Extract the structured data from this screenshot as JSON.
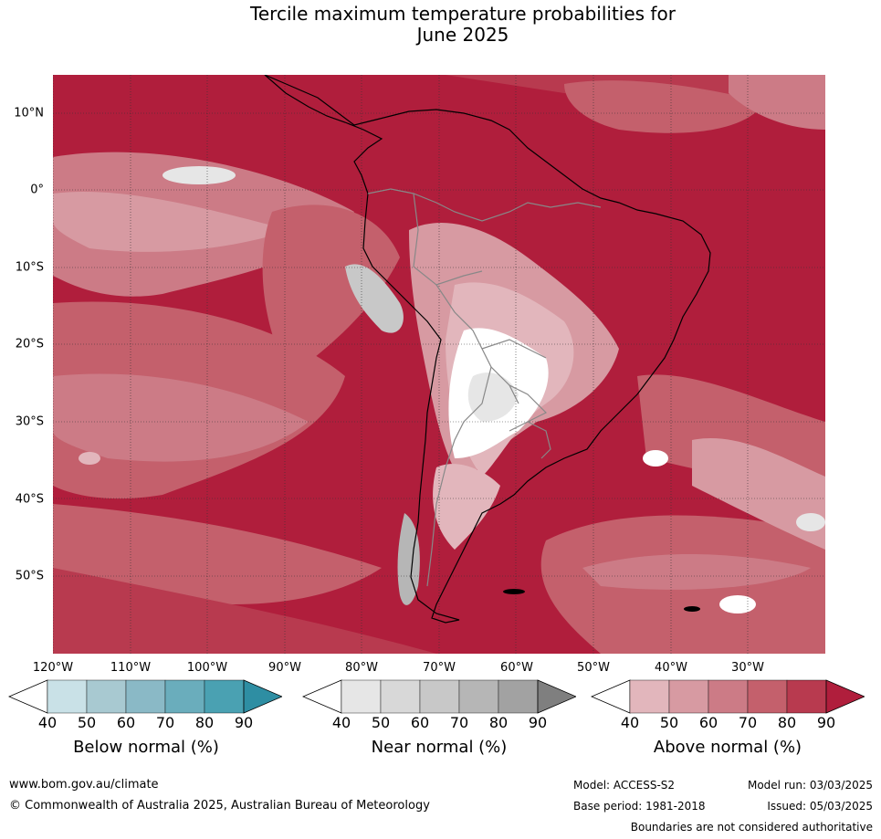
{
  "title_line1": "Tercile maximum temperature probabilities for",
  "title_line2": "June 2025",
  "lat_labels": [
    "10°N",
    "0°",
    "10°S",
    "20°S",
    "30°S",
    "40°S",
    "50°S"
  ],
  "lon_labels": [
    "120°W",
    "110°W",
    "100°W",
    "90°W",
    "80°W",
    "70°W",
    "60°W",
    "50°W",
    "40°W",
    "30°W"
  ],
  "colorbars": [
    {
      "title": "Below normal (%)",
      "ticks": [
        "40",
        "50",
        "60",
        "70",
        "80",
        "90"
      ],
      "colors": [
        "#ffffff",
        "#c9e1e7",
        "#a8c9d1",
        "#8ab9c6",
        "#6aadbc",
        "#4aa1b2",
        "#2e8ea3"
      ]
    },
    {
      "title": "Near normal (%)",
      "ticks": [
        "40",
        "50",
        "60",
        "70",
        "80",
        "90"
      ],
      "colors": [
        "#ffffff",
        "#e6e6e6",
        "#d8d8d8",
        "#c8c8c8",
        "#b6b6b6",
        "#a2a2a2",
        "#7f7f7f"
      ]
    },
    {
      "title": "Above normal (%)",
      "ticks": [
        "40",
        "50",
        "60",
        "70",
        "80",
        "90"
      ],
      "colors": [
        "#ffffff",
        "#e2b6bc",
        "#d79aa2",
        "#cc7b86",
        "#c4606c",
        "#b83a4f",
        "#b01e3c"
      ]
    }
  ],
  "colors": {
    "above_max": "#b01e3c",
    "above_high": "#b83a4f",
    "above_mid": "#c4606c",
    "above_low": "#cc7b86",
    "above_min": "#e2b6bc",
    "near": "#d8d8d8"
  },
  "footer": {
    "url": "www.bom.gov.au/climate",
    "copyright": "© Commonwealth of Australia 2025, Australian Bureau of Meteorology",
    "model": "Model: ACCESS-S2",
    "base_period": "Base period: 1981-2018",
    "model_run": "Model run: 03/03/2025",
    "issued": "Issued: 05/03/2025",
    "disclaimer": "Boundaries are not considered authoritative"
  }
}
